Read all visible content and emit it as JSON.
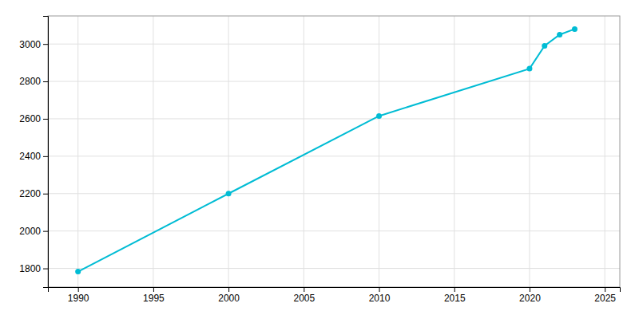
{
  "chart_data": {
    "type": "line",
    "x": [
      1990,
      2000,
      2010,
      2020,
      2021,
      2022,
      2023
    ],
    "values": [
      1783,
      2200,
      2615,
      2868,
      2990,
      3050,
      3080
    ],
    "color": "#00bcd4",
    "marker": "circle",
    "xlim": [
      1988,
      2026
    ],
    "ylim": [
      1700,
      3150
    ],
    "xticks": [
      1990,
      1995,
      2000,
      2005,
      2010,
      2015,
      2020,
      2025
    ],
    "yticks": [
      1800,
      2000,
      2200,
      2400,
      2600,
      2800,
      3000
    ],
    "grid": true
  }
}
